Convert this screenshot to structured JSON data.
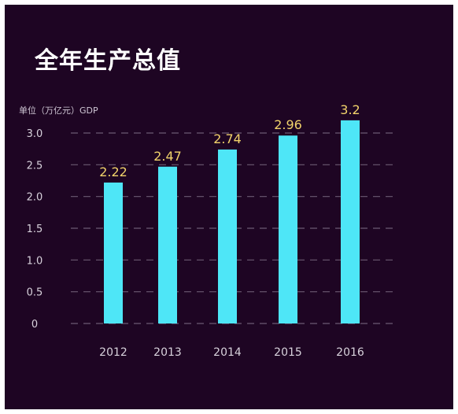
{
  "title": "全年生产总值",
  "unit_label": "单位（万亿元）GDP",
  "colors": {
    "background": "#1e0523",
    "bar": "#4ee6f7",
    "grid": "#6b5a73",
    "data_label": "#f2d36b"
  },
  "chart_data": {
    "type": "bar",
    "categories": [
      "2012",
      "2013",
      "2014",
      "2015",
      "2016"
    ],
    "values": [
      2.22,
      2.47,
      2.74,
      2.96,
      3.2
    ],
    "title": "全年生产总值",
    "ylabel": "单位（万亿元）GDP",
    "ylim": [
      0,
      3.0
    ],
    "yticks": [
      "0",
      "0.5",
      "1.0",
      "1.5",
      "2.0",
      "2.5",
      "3.0"
    ],
    "grid": "dashed-horizontal",
    "legend": "none"
  }
}
